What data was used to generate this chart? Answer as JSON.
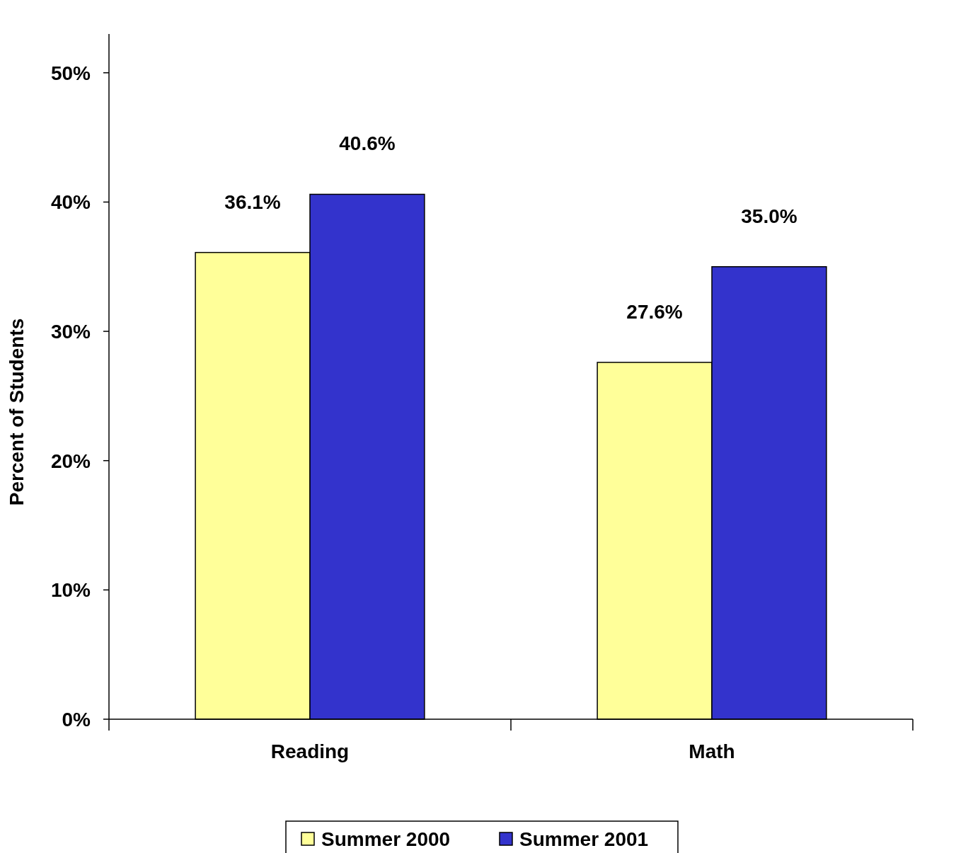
{
  "chart_data": {
    "type": "bar",
    "ylabel": "Percent of Students",
    "categories": [
      "Reading",
      "Math"
    ],
    "series": [
      {
        "name": "Summer 2000",
        "color": "#ffff99",
        "values": [
          36.1,
          27.6
        ],
        "value_labels": [
          "36.1%",
          "27.6%"
        ]
      },
      {
        "name": "Summer 2001",
        "color": "#3333cc",
        "values": [
          40.6,
          35.0
        ],
        "value_labels": [
          "40.6%",
          "35.0%"
        ]
      }
    ],
    "ylim": [
      0,
      53
    ],
    "yticks": [
      {
        "value": 0,
        "label": "0%"
      },
      {
        "value": 10,
        "label": "10%"
      },
      {
        "value": 20,
        "label": "20%"
      },
      {
        "value": 30,
        "label": "30%"
      },
      {
        "value": 40,
        "label": "40%"
      },
      {
        "value": 50,
        "label": "50%"
      }
    ],
    "grid": false,
    "legend": "bottom"
  }
}
